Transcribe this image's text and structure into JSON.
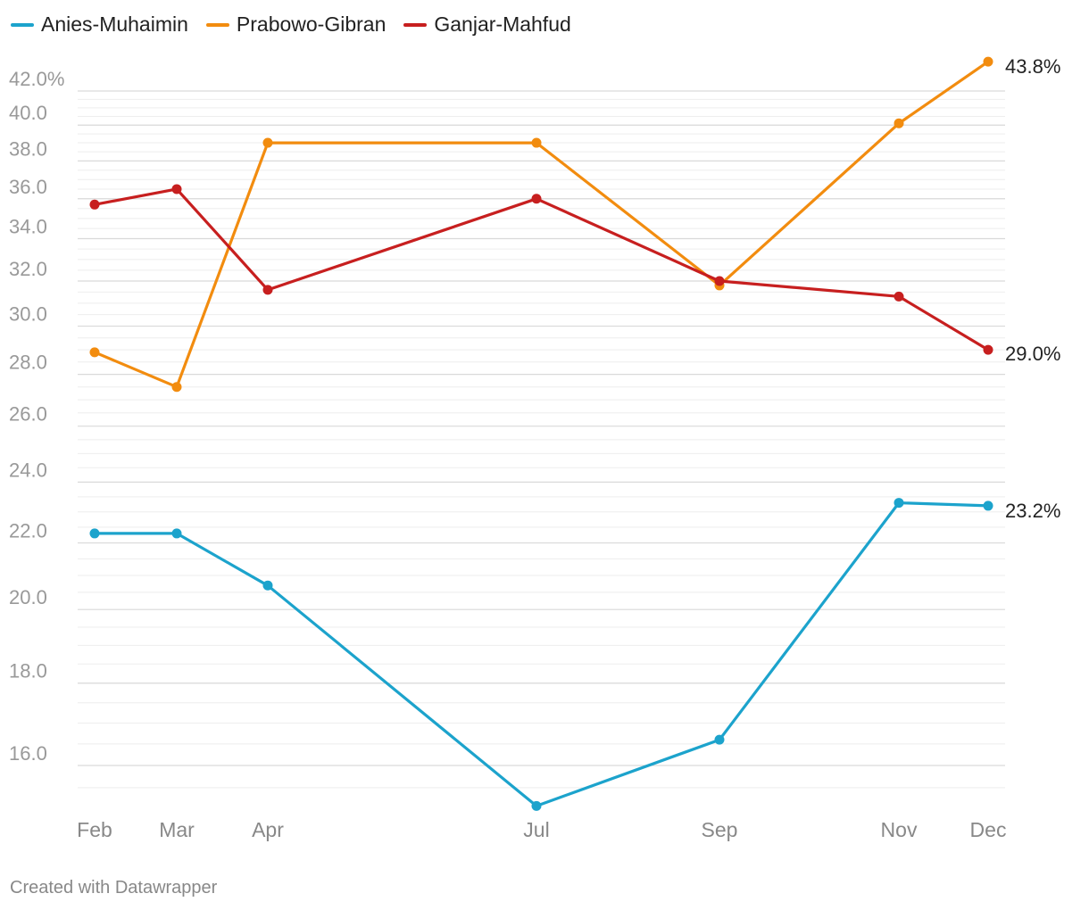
{
  "legend": [
    {
      "label": "Anies-Muhaimin",
      "color": "#1ca3cc"
    },
    {
      "label": "Prabowo-Gibran",
      "color": "#f28c0f"
    },
    {
      "label": "Ganjar-Mahfud",
      "color": "#c71f1f"
    }
  ],
  "credit": "Created with Datawrapper",
  "chart_data": {
    "type": "line",
    "categories": [
      "Feb",
      "Mar",
      "Apr",
      "Jul",
      "Sep",
      "Nov",
      "Dec"
    ],
    "x_months": [
      2,
      3,
      4,
      7,
      9,
      11,
      12
    ],
    "y_scale": "log",
    "ylim": [
      15.0,
      44.0
    ],
    "y_ticks": [
      16,
      18,
      20,
      22,
      24,
      26,
      28,
      30,
      32,
      34,
      36,
      38,
      40,
      42
    ],
    "y_tick_labels": [
      "16.0",
      "18.0",
      "20.0",
      "22.0",
      "24.0",
      "26.0",
      "28.0",
      "30.0",
      "32.0",
      "34.0",
      "36.0",
      "38.0",
      "40.0",
      "42.0%"
    ],
    "series": [
      {
        "name": "Anies-Muhaimin",
        "color": "#1ca3cc",
        "values": [
          22.3,
          22.3,
          20.7,
          15.1,
          16.6,
          23.3,
          23.2
        ],
        "end_label": "23.2%"
      },
      {
        "name": "Prabowo-Gibran",
        "color": "#f28c0f",
        "values": [
          28.9,
          27.5,
          39.0,
          39.0,
          31.8,
          40.1,
          43.8
        ],
        "end_label": "43.8%"
      },
      {
        "name": "Ganjar-Mahfud",
        "color": "#c71f1f",
        "values": [
          35.7,
          36.5,
          31.6,
          36.0,
          32.0,
          31.3,
          29.0
        ],
        "end_label": "29.0%"
      }
    ],
    "grid": true,
    "legend_position": "top-left"
  }
}
